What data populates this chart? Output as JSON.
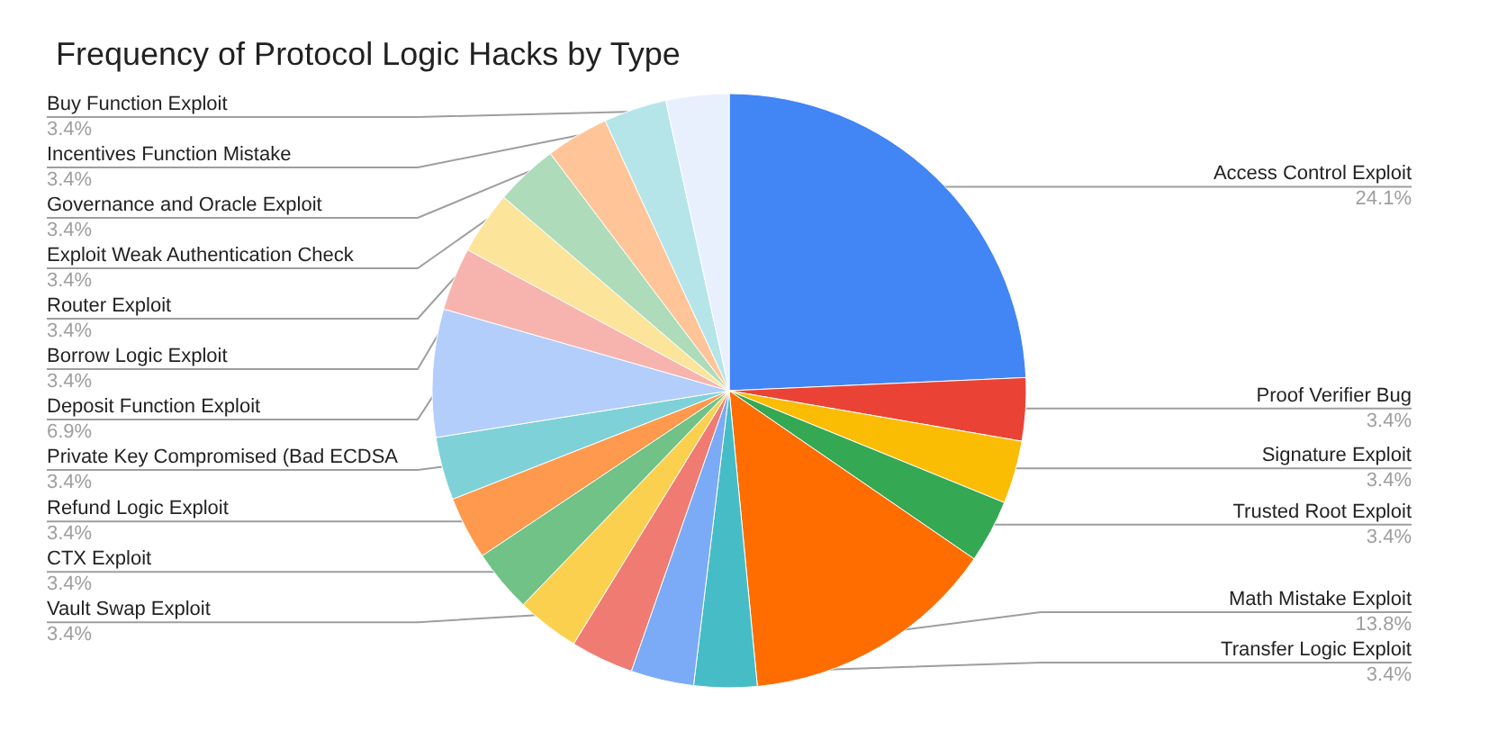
{
  "chart_data": {
    "type": "pie",
    "title": "Frequency of Protocol Logic Hacks by Type",
    "categories": [
      "Access Control Exploit",
      "Proof Verifier Bug",
      "Signature Exploit",
      "Trusted Root Exploit",
      "Math Mistake Exploit",
      "Transfer Logic Exploit",
      null,
      null,
      "Vault Swap Exploit",
      "CTX Exploit",
      "Refund Logic Exploit",
      "Private Key Compromised (Bad ECDSA",
      "Deposit Function Exploit",
      "Borrow Logic Exploit",
      "Router Exploit",
      "Exploit Weak Authentication Check",
      "Governance and Oracle Exploit",
      "Incentives Function Mistake",
      "Buy Function Exploit"
    ],
    "values": [
      24.1,
      3.4,
      3.4,
      3.4,
      13.8,
      3.4,
      3.4,
      3.4,
      3.4,
      3.4,
      3.4,
      3.4,
      6.9,
      3.4,
      3.4,
      3.4,
      3.4,
      3.4,
      3.4
    ],
    "value_labels": [
      "24.1%",
      "3.4%",
      "3.4%",
      "3.4%",
      "13.8%",
      "3.4%",
      null,
      null,
      "3.4%",
      "3.4%",
      "3.4%",
      "3.4%",
      "6.9%",
      "3.4%",
      "3.4%",
      "3.4%",
      "3.4%",
      "3.4%",
      "3.4%"
    ],
    "colors": [
      "#4285f4",
      "#ea4335",
      "#fbbc04",
      "#34a853",
      "#ff6d01",
      "#46bdc6",
      "#7baaf7",
      "#f07b72",
      "#fcd04f",
      "#71c287",
      "#ff994d",
      "#7ed1d7",
      "#b3cefb",
      "#f7b4ae",
      "#fde49b",
      "#aedcba",
      "#ffc599",
      "#b5e5e8",
      "#e8f0fe"
    ]
  }
}
